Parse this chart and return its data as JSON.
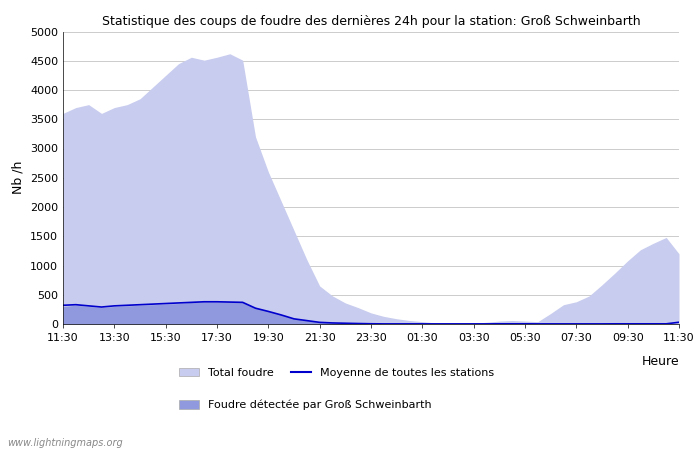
{
  "title": "Statistique des coups de foudre des dernières 24h pour la station: Groß Schweinbarth",
  "ylabel": "Nb /h",
  "xlabel": "Heure",
  "watermark": "www.lightningmaps.org",
  "legend_total": "Total foudre",
  "legend_local": "Foudre détectée par Groß Schweinbarth",
  "legend_avg": "Moyenne de toutes les stations",
  "color_total": "#c8ccee",
  "color_local": "#9099dd",
  "color_avg": "#0000cc",
  "ylim": [
    0,
    5000
  ],
  "yticks": [
    0,
    500,
    1000,
    1500,
    2000,
    2500,
    3000,
    3500,
    4000,
    4500,
    5000
  ],
  "xtick_labels": [
    "11:30",
    "13:30",
    "15:30",
    "17:30",
    "19:30",
    "21:30",
    "23:30",
    "01:30",
    "03:30",
    "05:30",
    "07:30",
    "09:30",
    "11:30"
  ],
  "x_indices": [
    0,
    2,
    4,
    6,
    8,
    10,
    12,
    14,
    16,
    18,
    20,
    22,
    24
  ],
  "total_foudre": [
    3600,
    3700,
    3750,
    3600,
    3700,
    3750,
    3850,
    4050,
    4250,
    4450,
    4560,
    4510,
    4560,
    4620,
    4510,
    3200,
    2600,
    2100,
    1600,
    1100,
    650,
    480,
    360,
    280,
    190,
    130,
    90,
    60,
    40,
    20,
    15,
    15,
    15,
    30,
    50,
    60,
    50,
    40,
    180,
    330,
    380,
    480,
    670,
    870,
    1080,
    1270,
    1380,
    1480,
    1200
  ],
  "local_foudre": [
    300,
    320,
    300,
    280,
    300,
    310,
    320,
    330,
    340,
    350,
    370,
    380,
    380,
    380,
    380,
    280,
    220,
    160,
    90,
    60,
    30,
    20,
    15,
    10,
    5,
    3,
    2,
    2,
    2,
    2,
    2,
    2,
    2,
    2,
    3,
    3,
    3,
    2,
    2,
    2,
    2,
    2,
    2,
    3,
    3,
    3,
    3,
    3,
    3
  ],
  "avg_line": [
    320,
    330,
    310,
    290,
    310,
    320,
    330,
    340,
    350,
    360,
    370,
    380,
    380,
    375,
    370,
    270,
    215,
    155,
    88,
    58,
    28,
    18,
    13,
    8,
    4,
    2,
    2,
    2,
    2,
    2,
    2,
    2,
    2,
    2,
    3,
    3,
    3,
    2,
    2,
    2,
    2,
    2,
    2,
    3,
    3,
    3,
    3,
    3,
    30
  ],
  "bg_color": "#ffffff",
  "grid_color": "#cccccc",
  "fig_width": 7.0,
  "fig_height": 4.5,
  "dpi": 100
}
